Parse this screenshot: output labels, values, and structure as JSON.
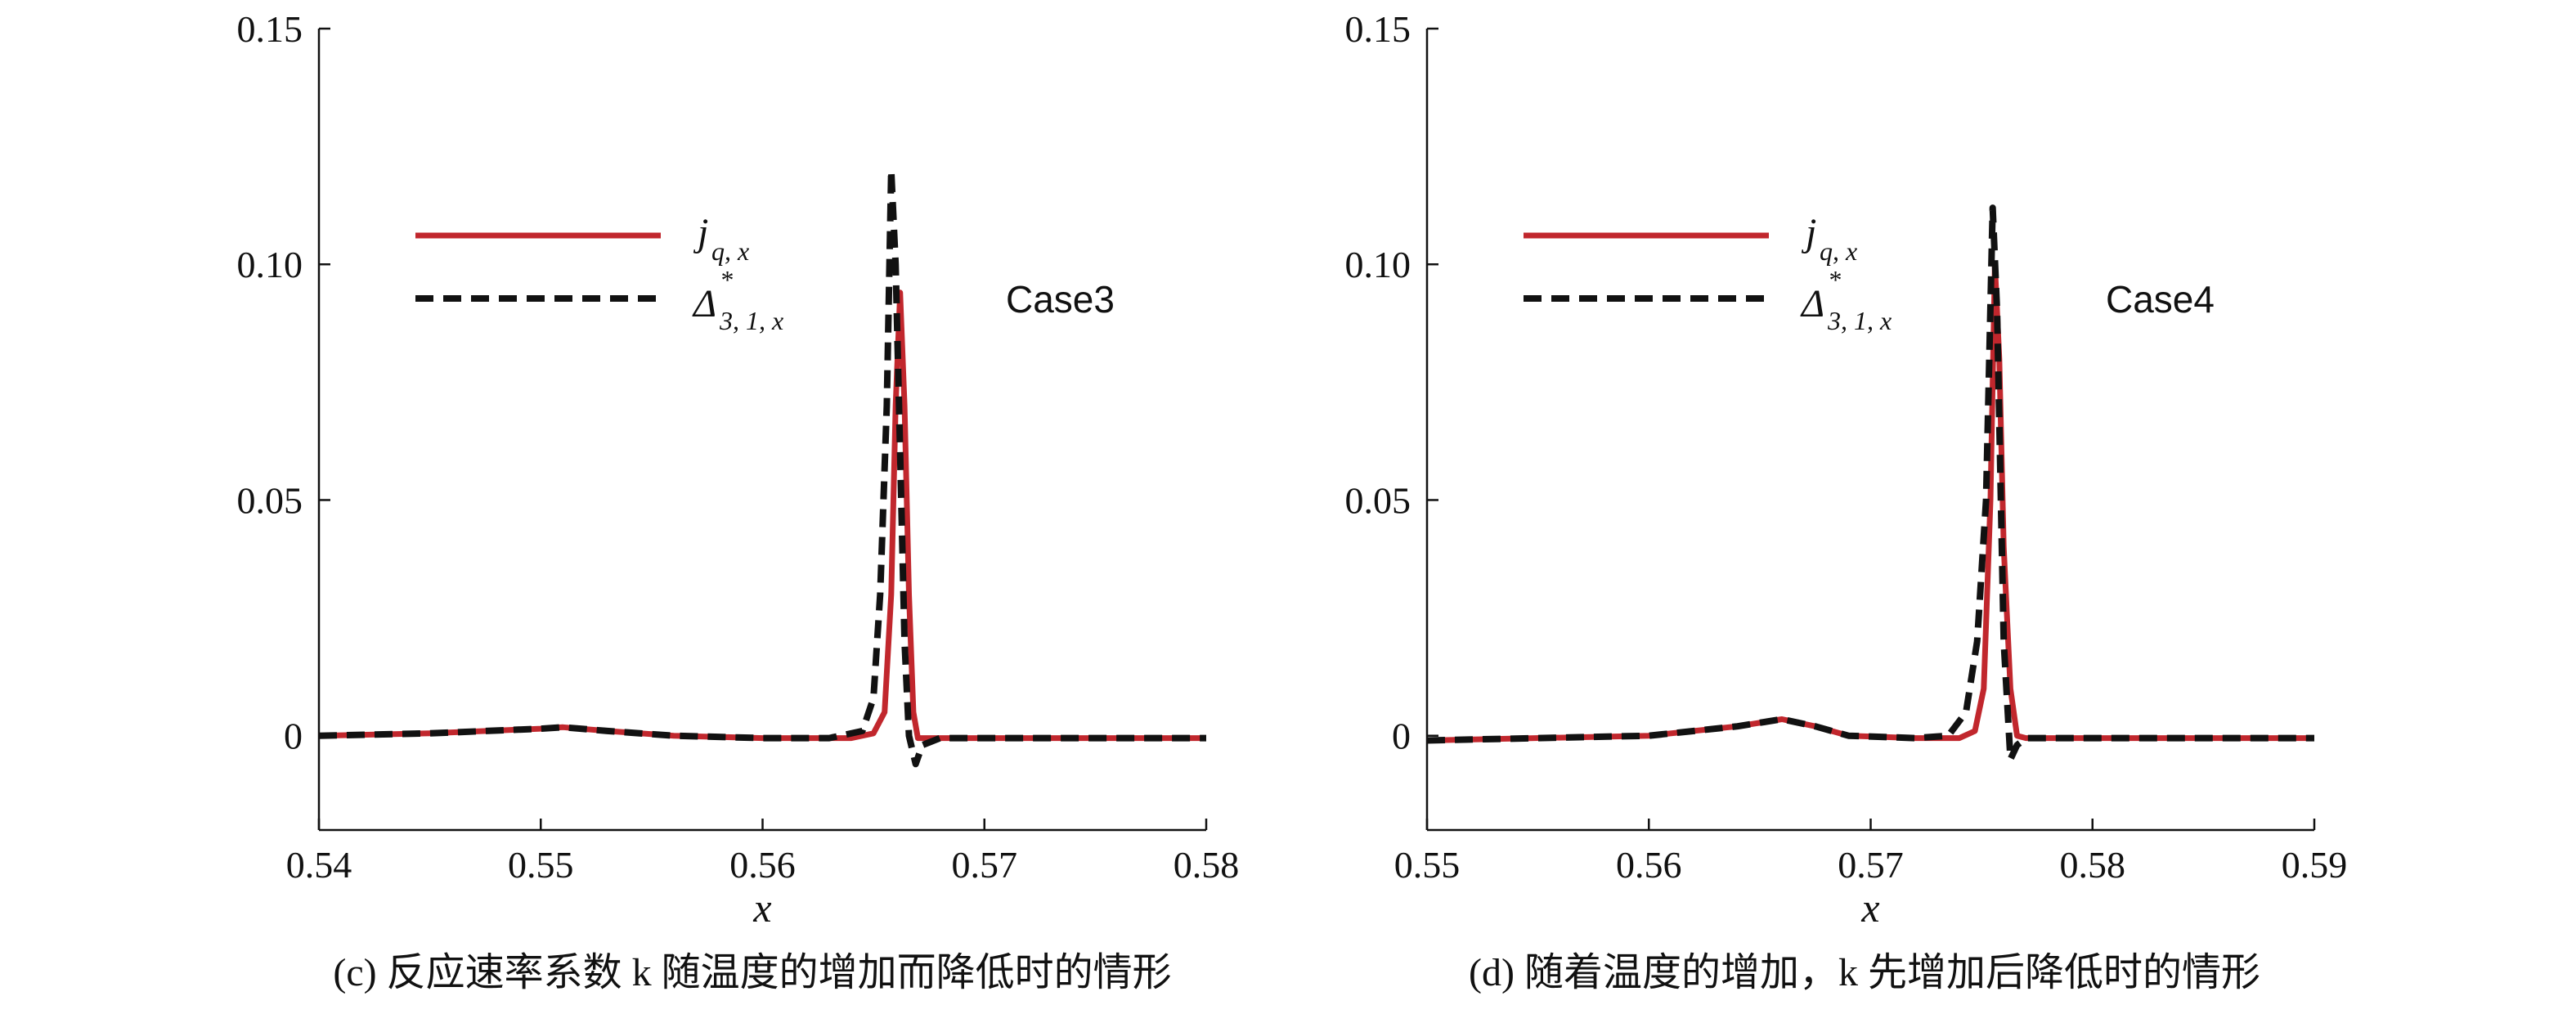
{
  "colors": {
    "series1": "#c1272d",
    "series2": "#111111",
    "axis": "#111111"
  },
  "chart_data": [
    {
      "type": "line",
      "panel": "c",
      "caption": "(c) 反应速率系数 k 随温度的增加而降低时的情形",
      "annotation": "Case3",
      "xlabel": "x",
      "xlim": [
        0.54,
        0.58
      ],
      "ylim": [
        -0.02,
        0.15
      ],
      "xticks": [
        "0.54",
        "0.55",
        "0.56",
        "0.57",
        "0.58"
      ],
      "yticks": [
        "0",
        "0.05",
        "0.10",
        "0.15"
      ],
      "legend": {
        "placement": "top-left",
        "items": [
          {
            "main": "j",
            "sub": "q, x"
          },
          {
            "main": "Δ",
            "sup": "*",
            "sub": "3, 1, x"
          }
        ]
      },
      "series": [
        {
          "name": "j_q,x",
          "x": [
            0.54,
            0.545,
            0.55,
            0.551,
            0.553,
            0.556,
            0.56,
            0.564,
            0.565,
            0.5655,
            0.5658,
            0.566,
            0.5662,
            0.5664,
            0.5666,
            0.5668,
            0.567,
            0.572,
            0.58
          ],
          "y": [
            0,
            0.0005,
            0.0015,
            0.0018,
            0.001,
            0,
            -0.0005,
            -0.0005,
            0.0005,
            0.005,
            0.03,
            0.07,
            0.094,
            0.07,
            0.03,
            0.005,
            -0.0005,
            -0.0005,
            -0.0005
          ]
        },
        {
          "name": "Δ*_3,1,x",
          "x": [
            0.54,
            0.545,
            0.55,
            0.551,
            0.553,
            0.556,
            0.56,
            0.563,
            0.5645,
            0.565,
            0.5653,
            0.5656,
            0.5658,
            0.566,
            0.5662,
            0.5664,
            0.5666,
            0.5669,
            0.5672,
            0.568,
            0.572,
            0.58
          ],
          "y": [
            0,
            0.0005,
            0.0015,
            0.0018,
            0.001,
            0,
            -0.0005,
            -0.0005,
            0.001,
            0.008,
            0.03,
            0.07,
            0.12,
            0.1,
            0.06,
            0.02,
            0.0,
            -0.006,
            -0.002,
            -0.0005,
            -0.0005,
            -0.0005
          ]
        }
      ]
    },
    {
      "type": "line",
      "panel": "d",
      "caption": "(d) 随着温度的增加，k 先增加后降低时的情形",
      "annotation": "Case4",
      "xlabel": "x",
      "xlim": [
        0.55,
        0.59
      ],
      "ylim": [
        -0.02,
        0.15
      ],
      "xticks": [
        "0.55",
        "0.56",
        "0.57",
        "0.58",
        "0.59"
      ],
      "yticks": [
        "0",
        "0.05",
        "0.10",
        "0.15"
      ],
      "legend": {
        "placement": "top-left",
        "items": [
          {
            "main": "j",
            "sub": "q, x"
          },
          {
            "main": "Δ",
            "sup": "*",
            "sub": "3, 1, x"
          }
        ]
      },
      "series": [
        {
          "name": "j_q,x",
          "x": [
            0.55,
            0.56,
            0.564,
            0.566,
            0.5675,
            0.569,
            0.572,
            0.574,
            0.5747,
            0.5751,
            0.5754,
            0.5756,
            0.5758,
            0.576,
            0.5763,
            0.5766,
            0.577,
            0.58,
            0.59
          ],
          "y": [
            -0.001,
            0,
            0.002,
            0.0035,
            0.002,
            0,
            -0.0005,
            -0.0005,
            0.001,
            0.01,
            0.05,
            0.1,
            0.08,
            0.04,
            0.01,
            0.0,
            -0.0005,
            -0.0005,
            -0.0005
          ]
        },
        {
          "name": "Δ*_3,1,x",
          "x": [
            0.55,
            0.56,
            0.564,
            0.566,
            0.5675,
            0.569,
            0.572,
            0.5735,
            0.5743,
            0.5748,
            0.5752,
            0.5755,
            0.5757,
            0.576,
            0.5763,
            0.5766,
            0.577,
            0.58,
            0.59
          ],
          "y": [
            -0.001,
            0,
            0.002,
            0.0035,
            0.002,
            0,
            -0.0005,
            0,
            0.005,
            0.02,
            0.05,
            0.112,
            0.09,
            0.02,
            -0.005,
            -0.002,
            -0.0005,
            -0.0005,
            -0.0005
          ]
        }
      ]
    }
  ]
}
